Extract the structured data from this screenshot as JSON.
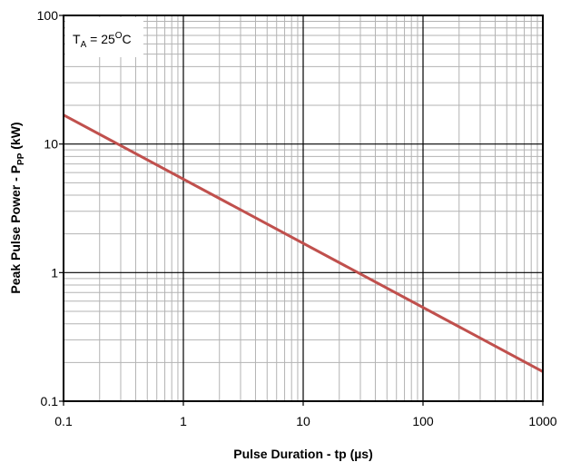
{
  "chart_data": {
    "type": "line",
    "xscale": "log",
    "yscale": "log",
    "xlim": [
      0.1,
      1000
    ],
    "ylim": [
      0.1,
      100
    ],
    "grid": true,
    "xlabel": "Pulse Duration - tp (µs)",
    "ylabel": {
      "main": "Peak Pulse Power - P",
      "sub": "PP",
      "unit": "(kW)"
    },
    "xticks": [
      "0.1",
      "1",
      "10",
      "100",
      "1000"
    ],
    "yticks": [
      "0.1",
      "1",
      "10",
      "100"
    ],
    "annotation": {
      "t": "T",
      "sub": "A",
      "eq": " = 25",
      "sup": "O",
      "unit": "C"
    },
    "series": [
      {
        "color": "#c0504d",
        "x": [
          0.1,
          1000
        ],
        "y": [
          16.8,
          0.17
        ]
      }
    ]
  }
}
